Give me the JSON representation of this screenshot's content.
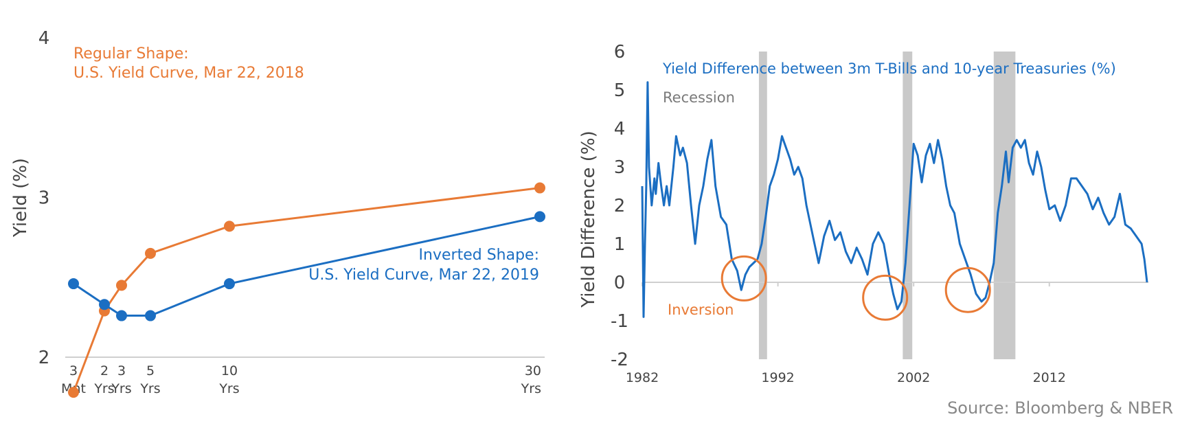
{
  "source": "Source: Bloomberg & NBER",
  "colors": {
    "orange": "#E87A35",
    "blue": "#1B6EC2",
    "grey_text": "#7a7a7a",
    "axis_text": "#444444",
    "recession": "#c9c9c9",
    "axis_line": "#cfcfcf"
  },
  "chart_data": [
    {
      "type": "line",
      "ylabel": "Yield (%)",
      "xlabel": "",
      "ylim": [
        2,
        4
      ],
      "yticks": [
        "2",
        "3",
        "4"
      ],
      "x_categories": [
        {
          "top": "3",
          "bottom": "Mnt",
          "years": 0.25
        },
        {
          "top": "2",
          "bottom": "Yrs",
          "years": 2
        },
        {
          "top": "3",
          "bottom": "Yrs",
          "years": 3
        },
        {
          "top": "5",
          "bottom": "Yrs",
          "years": 5
        },
        {
          "top": "10",
          "bottom": "Yrs",
          "years": 10
        },
        {
          "top": "30",
          "bottom": "Yrs",
          "years": 30
        }
      ],
      "series": [
        {
          "name": "Regular Shape:",
          "subtitle": "U.S. Yield Curve, Mar 22, 2018",
          "color": "#E87A35",
          "values": [
            1.78,
            2.29,
            2.45,
            2.65,
            2.82,
            3.06
          ]
        },
        {
          "name": "Inverted Shape:",
          "subtitle": "U.S. Yield Curve, Mar 22, 2019",
          "color": "#1B6EC2",
          "values": [
            2.46,
            2.33,
            2.26,
            2.26,
            2.46,
            2.88
          ]
        }
      ]
    },
    {
      "type": "line",
      "title": "Yield Difference between 3m T-Bills and 10-year Treasuries (%)",
      "ylabel": "Yield Difference (%)",
      "ylim": [
        -2,
        6
      ],
      "yticks": [
        "-2",
        "-1",
        "0",
        "1",
        "2",
        "3",
        "4",
        "5",
        "6"
      ],
      "xticks": [
        "1982",
        "1992",
        "2002",
        "2012"
      ],
      "xlim": [
        1982,
        2019.3
      ],
      "recession_label": "Recession",
      "annotation": "Inversion",
      "recessions": [
        [
          1990.6,
          1991.2
        ],
        [
          2001.2,
          2001.9
        ],
        [
          2007.9,
          2009.5
        ]
      ],
      "inversion_circles": [
        [
          1989.5,
          0.1
        ],
        [
          1999.9,
          -0.4
        ],
        [
          2006.0,
          -0.2
        ]
      ],
      "series": [
        {
          "color": "#1B6EC2",
          "x": [
            1982.0,
            1982.1,
            1982.2,
            1982.3,
            1982.4,
            1982.5,
            1982.7,
            1982.9,
            1983.0,
            1983.2,
            1983.4,
            1983.6,
            1983.8,
            1984.0,
            1984.3,
            1984.5,
            1984.8,
            1985.0,
            1985.3,
            1985.6,
            1985.9,
            1986.2,
            1986.5,
            1986.8,
            1987.1,
            1987.4,
            1987.8,
            1988.2,
            1988.6,
            1989.0,
            1989.3,
            1989.6,
            1989.9,
            1990.2,
            1990.5,
            1990.8,
            1991.1,
            1991.4,
            1991.7,
            1992.0,
            1992.3,
            1992.6,
            1992.9,
            1993.2,
            1993.5,
            1993.8,
            1994.1,
            1994.4,
            1994.7,
            1995.0,
            1995.4,
            1995.8,
            1996.2,
            1996.6,
            1997.0,
            1997.4,
            1997.8,
            1998.2,
            1998.6,
            1999.0,
            1999.4,
            1999.8,
            2000.2,
            2000.5,
            2000.8,
            2001.1,
            2001.4,
            2001.7,
            2002.0,
            2002.3,
            2002.6,
            2002.9,
            2003.2,
            2003.5,
            2003.8,
            2004.1,
            2004.4,
            2004.7,
            2005.0,
            2005.4,
            2005.8,
            2006.2,
            2006.6,
            2007.0,
            2007.3,
            2007.6,
            2007.9,
            2008.2,
            2008.5,
            2008.8,
            2009.0,
            2009.3,
            2009.6,
            2009.9,
            2010.2,
            2010.5,
            2010.8,
            2011.1,
            2011.4,
            2011.7,
            2012.0,
            2012.4,
            2012.8,
            2013.2,
            2013.6,
            2014.0,
            2014.4,
            2014.8,
            2015.2,
            2015.6,
            2016.0,
            2016.4,
            2016.8,
            2017.2,
            2017.6,
            2018.0,
            2018.4,
            2018.8,
            2019.0,
            2019.2
          ],
          "y": [
            2.5,
            -0.9,
            1.0,
            2.5,
            5.2,
            3.0,
            2.0,
            2.7,
            2.3,
            3.1,
            2.5,
            2.0,
            2.5,
            2.0,
            3.0,
            3.8,
            3.3,
            3.5,
            3.1,
            2.0,
            1.0,
            2.0,
            2.5,
            3.2,
            3.7,
            2.5,
            1.7,
            1.5,
            0.6,
            0.3,
            -0.2,
            0.2,
            0.4,
            0.5,
            0.6,
            1.0,
            1.7,
            2.5,
            2.8,
            3.2,
            3.8,
            3.5,
            3.2,
            2.8,
            3.0,
            2.7,
            2.0,
            1.5,
            1.0,
            0.5,
            1.2,
            1.6,
            1.1,
            1.3,
            0.8,
            0.5,
            0.9,
            0.6,
            0.2,
            1.0,
            1.3,
            1.0,
            0.2,
            -0.3,
            -0.7,
            -0.5,
            0.5,
            2.0,
            3.6,
            3.3,
            2.6,
            3.3,
            3.6,
            3.1,
            3.7,
            3.2,
            2.5,
            2.0,
            1.8,
            1.0,
            0.6,
            0.2,
            -0.3,
            -0.5,
            -0.4,
            0.0,
            0.5,
            1.8,
            2.5,
            3.4,
            2.6,
            3.5,
            3.7,
            3.5,
            3.7,
            3.1,
            2.8,
            3.4,
            3.0,
            2.4,
            1.9,
            2.0,
            1.6,
            2.0,
            2.7,
            2.7,
            2.5,
            2.3,
            1.9,
            2.2,
            1.8,
            1.5,
            1.7,
            2.3,
            1.5,
            1.4,
            1.2,
            1.0,
            0.6,
            0.0
          ]
        }
      ]
    }
  ]
}
